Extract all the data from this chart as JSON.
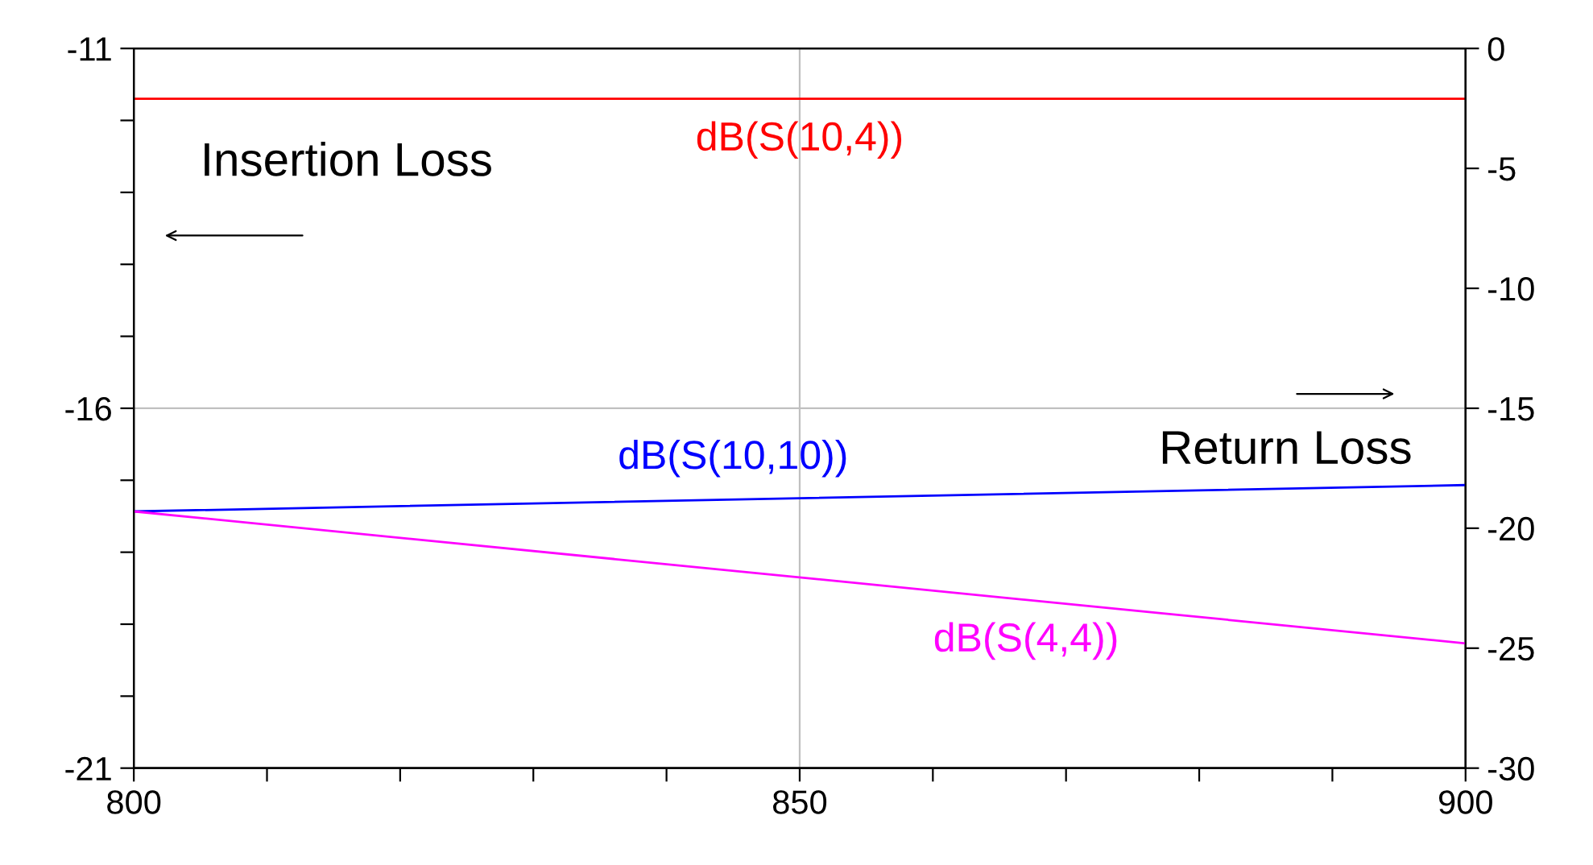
{
  "chart_data": {
    "type": "line",
    "x": [
      800,
      900
    ],
    "series": [
      {
        "name": "dB(S(10,4))",
        "color": "#ff0000",
        "values": [
          -11.7,
          -11.7
        ]
      },
      {
        "name": "dB(S(10,10))",
        "color": "#0000ff",
        "values": [
          -19.3,
          -18.2
        ],
        "axis": "y2"
      },
      {
        "name": "dB(S(4,4))",
        "color": "#ff00ff",
        "values": [
          -19.3,
          -24.8
        ],
        "axis": "y2"
      }
    ],
    "xlim": [
      800,
      900
    ],
    "xticks": [
      800,
      {
        "value": 810,
        "label": null
      },
      {
        "value": 820,
        "label": null
      },
      {
        "value": 830,
        "label": null
      },
      {
        "value": 840,
        "label": null
      },
      850,
      {
        "value": 860,
        "label": null
      },
      {
        "value": 870,
        "label": null
      },
      {
        "value": 880,
        "label": null
      },
      {
        "value": 890,
        "label": null
      },
      900
    ],
    "ylim": [
      -21,
      -11
    ],
    "yticks": [
      -21,
      {
        "value": -20,
        "label": null
      },
      {
        "value": -19,
        "label": null
      },
      {
        "value": -18,
        "label": null
      },
      {
        "value": -17,
        "label": null
      },
      -16,
      {
        "value": -15,
        "label": null
      },
      {
        "value": -14,
        "label": null
      },
      {
        "value": -13,
        "label": null
      },
      {
        "value": -12,
        "label": null
      },
      -11
    ],
    "y2lim": [
      -30,
      0
    ],
    "y2ticks": [
      -30,
      -25,
      -20,
      -15,
      -10,
      -5,
      0
    ],
    "grid": true,
    "legend": false,
    "marker": "none",
    "line_style": "solid",
    "annotations": [
      "Insertion Loss",
      "Return Loss"
    ]
  }
}
